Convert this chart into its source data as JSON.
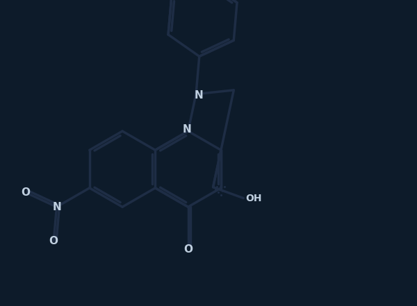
{
  "bg_color": "#0d1b2a",
  "bond_color": "#1e2d45",
  "text_color": "#c0d0e0",
  "lw": 2.5,
  "figsize": [
    6.0,
    4.41
  ],
  "dpi": 100,
  "xlim": [
    -5.5,
    7.0
  ],
  "ylim": [
    -5.0,
    5.5
  ]
}
